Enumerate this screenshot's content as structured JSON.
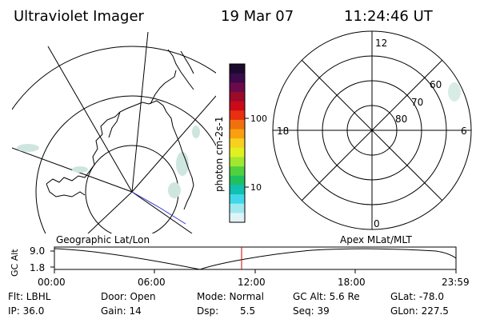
{
  "header": {
    "title": "Ultraviolet Imager",
    "date": "19 Mar 07",
    "time": "11:24:46 UT"
  },
  "left_panel": {
    "label": "Geographic Lat/Lon"
  },
  "right_panel": {
    "label": "Apex  MLat/MLT",
    "mlt_labels": {
      "top": "12",
      "left": "18",
      "right": "6",
      "bottom": "0"
    },
    "lat_labels": [
      "60",
      "70",
      "80"
    ]
  },
  "colorbar": {
    "unit_label": "photon cm-2s-1",
    "tick_labels": [
      "100",
      "10"
    ],
    "colors": [
      "#1a0a2e",
      "#3a0a4a",
      "#6a0a4a",
      "#9a0a2a",
      "#c80a1a",
      "#e83010",
      "#f07010",
      "#f8a010",
      "#f8d020",
      "#e0f020",
      "#a0e830",
      "#50d040",
      "#20c060",
      "#10c0b0",
      "#40d8e8",
      "#a0e8f0",
      "#e0f4f8"
    ]
  },
  "timeline": {
    "y_label": "GC Alt",
    "y_ticks": [
      "9.0",
      "1.8"
    ],
    "x_ticks": [
      "00:00",
      "06:00",
      "12:00",
      "18:00",
      "23:59"
    ],
    "current_marker_color": "#cc0000"
  },
  "status": {
    "flt": "Flt: LBHL",
    "ip": "IP: 36.0",
    "door": "Door: Open",
    "gain": "Gain: 14",
    "mode": "Mode: Normal",
    "dsp_label": "Dsp:",
    "dsp_value": "5.5",
    "gc_alt": "GC Alt: 5.6 Re",
    "seq": "Seq: 39",
    "glat": "GLat: -78.0",
    "glon": "GLon: 227.5"
  }
}
